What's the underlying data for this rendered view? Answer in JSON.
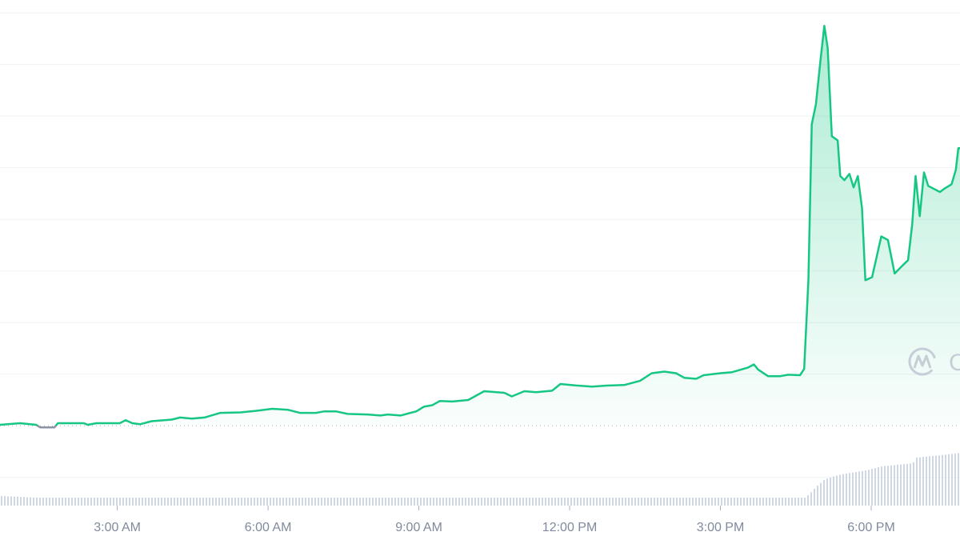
{
  "chart_data": {
    "type": "line",
    "title": "",
    "xlabel": "",
    "ylabel": "",
    "x_ticks": [
      "3:00 AM",
      "6:00 AM",
      "9:00 AM",
      "12:00 PM",
      "3:00 PM",
      "6:00 PM"
    ],
    "x_tick_times": [
      "03:00",
      "06:00",
      "09:00",
      "12:00",
      "15:00",
      "18:00"
    ],
    "xlim": [
      "00:40",
      "19:46"
    ],
    "ylim": [
      -1.05,
      8.25
    ],
    "y_axis_labels_visible": false,
    "grid": true,
    "reference_line": {
      "value": 0,
      "style": "dotted"
    },
    "colors": {
      "up": "#16c784",
      "down": "#8c93a3",
      "grid": "#eff2f5",
      "volume": "#cfd6e4",
      "axis_text": "#808a9d",
      "watermark": "#c3c9d3"
    },
    "series": [
      {
        "points": [
          [
            "00:40",
            0.02
          ],
          [
            "01:04",
            0.05
          ],
          [
            "01:23",
            0.02
          ],
          [
            "01:28",
            -0.03
          ],
          [
            "01:45",
            -0.03
          ],
          [
            "01:49",
            0.05
          ],
          [
            "02:20",
            0.05
          ],
          [
            "02:25",
            0.02
          ],
          [
            "02:35",
            0.05
          ],
          [
            "03:03",
            0.05
          ],
          [
            "03:10",
            0.11
          ],
          [
            "03:18",
            0.05
          ],
          [
            "03:27",
            0.03
          ],
          [
            "03:41",
            0.09
          ],
          [
            "04:05",
            0.12
          ],
          [
            "04:15",
            0.16
          ],
          [
            "04:29",
            0.14
          ],
          [
            "04:44",
            0.16
          ],
          [
            "05:03",
            0.25
          ],
          [
            "05:27",
            0.26
          ],
          [
            "05:46",
            0.29
          ],
          [
            "06:05",
            0.33
          ],
          [
            "06:24",
            0.31
          ],
          [
            "06:38",
            0.25
          ],
          [
            "06:57",
            0.25
          ],
          [
            "07:07",
            0.28
          ],
          [
            "07:21",
            0.28
          ],
          [
            "07:35",
            0.23
          ],
          [
            "07:59",
            0.22
          ],
          [
            "08:14",
            0.2
          ],
          [
            "08:23",
            0.22
          ],
          [
            "08:38",
            0.2
          ],
          [
            "08:57",
            0.28
          ],
          [
            "09:06",
            0.37
          ],
          [
            "09:16",
            0.4
          ],
          [
            "09:25",
            0.48
          ],
          [
            "09:40",
            0.47
          ],
          [
            "09:59",
            0.5
          ],
          [
            "10:18",
            0.67
          ],
          [
            "10:42",
            0.64
          ],
          [
            "10:51",
            0.57
          ],
          [
            "11:06",
            0.67
          ],
          [
            "11:20",
            0.65
          ],
          [
            "11:39",
            0.68
          ],
          [
            "11:49",
            0.81
          ],
          [
            "12:08",
            0.78
          ],
          [
            "12:27",
            0.76
          ],
          [
            "12:46",
            0.78
          ],
          [
            "13:05",
            0.79
          ],
          [
            "13:24",
            0.87
          ],
          [
            "13:38",
            1.02
          ],
          [
            "13:53",
            1.05
          ],
          [
            "14:07",
            1.02
          ],
          [
            "14:17",
            0.93
          ],
          [
            "14:31",
            0.91
          ],
          [
            "14:40",
            0.98
          ],
          [
            "15:00",
            1.02
          ],
          [
            "15:14",
            1.04
          ],
          [
            "15:33",
            1.13
          ],
          [
            "15:40",
            1.19
          ],
          [
            "15:45",
            1.09
          ],
          [
            "15:57",
            0.96
          ],
          [
            "16:11",
            0.96
          ],
          [
            "16:21",
            0.99
          ],
          [
            "16:35",
            0.98
          ],
          [
            "16:40",
            1.1
          ],
          [
            "16:45",
            2.82
          ],
          [
            "16:49",
            5.84
          ],
          [
            "16:54",
            6.23
          ],
          [
            "16:59",
            7.01
          ],
          [
            "17:04",
            7.75
          ],
          [
            "17:08",
            7.32
          ],
          [
            "17:13",
            5.61
          ],
          [
            "17:20",
            5.53
          ],
          [
            "17:23",
            4.84
          ],
          [
            "17:28",
            4.76
          ],
          [
            "17:34",
            4.88
          ],
          [
            "17:39",
            4.62
          ],
          [
            "17:44",
            4.84
          ],
          [
            "17:49",
            4.22
          ],
          [
            "17:53",
            2.82
          ],
          [
            "18:01",
            2.88
          ],
          [
            "18:12",
            3.67
          ],
          [
            "18:20",
            3.6
          ],
          [
            "18:28",
            2.95
          ],
          [
            "18:39",
            3.13
          ],
          [
            "18:44",
            3.21
          ],
          [
            "18:49",
            3.91
          ],
          [
            "18:53",
            4.84
          ],
          [
            "18:58",
            4.06
          ],
          [
            "19:03",
            4.91
          ],
          [
            "19:08",
            4.65
          ],
          [
            "19:22",
            4.53
          ],
          [
            "19:27",
            4.59
          ],
          [
            "19:36",
            4.68
          ],
          [
            "19:41",
            4.96
          ],
          [
            "19:44",
            5.38
          ],
          [
            "19:46",
            5.38
          ]
        ]
      }
    ],
    "volume": [
      [
        "00:40",
        1.2
      ],
      [
        "01:23",
        1.0
      ],
      [
        "16:40",
        1.0
      ],
      [
        "16:45",
        1.4
      ],
      [
        "16:54",
        2.4
      ],
      [
        "17:04",
        3.3
      ],
      [
        "17:23",
        3.9
      ],
      [
        "17:53",
        4.4
      ],
      [
        "18:12",
        4.9
      ],
      [
        "18:49",
        5.3
      ],
      [
        "18:53",
        6.0
      ],
      [
        "19:22",
        6.3
      ],
      [
        "19:46",
        6.6
      ]
    ]
  },
  "watermark": {
    "text": "CoinMarketCap",
    "icon": "coinmarketcap-logo"
  }
}
